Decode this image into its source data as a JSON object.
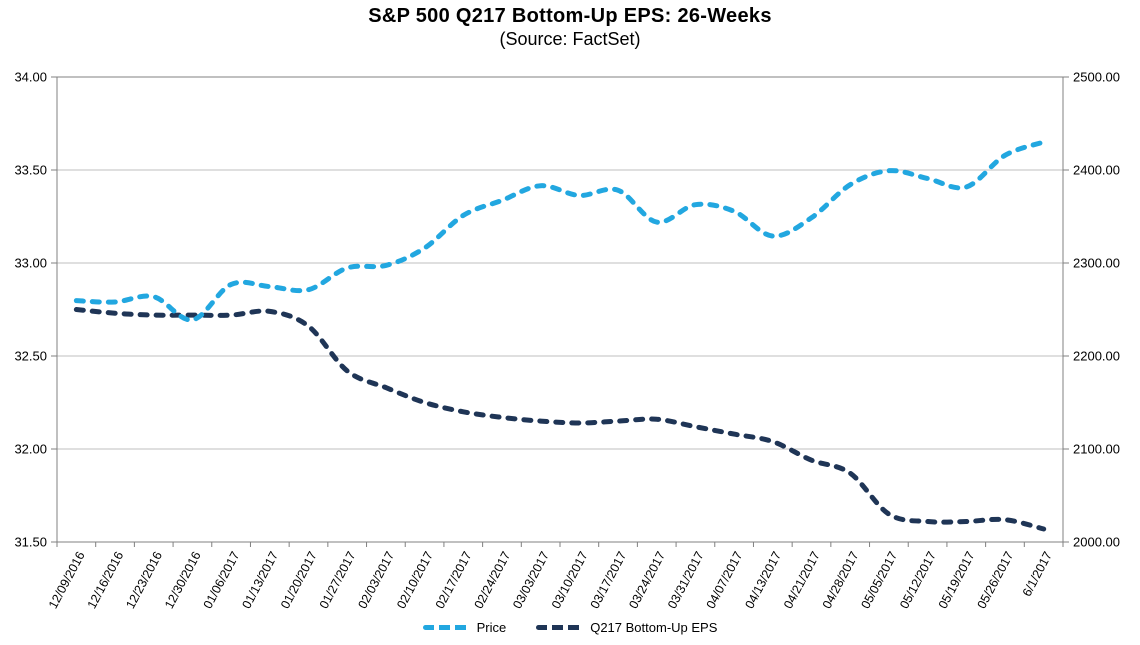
{
  "page": {
    "background": "#FFFFFF"
  },
  "colors": {
    "grid": "#BFBFBF",
    "axis": "#808080",
    "text": "#000000",
    "price_line": "#22A7E0",
    "eps_line": "#1F3556"
  },
  "chart_data": {
    "type": "line",
    "title": "S&P 500 Q217 Bottom-Up EPS: 26-Weeks",
    "subtitle": "(Source: FactSet)",
    "grid": true,
    "legend_position": "bottom",
    "x_labels": [
      "12/09/2016",
      "12/16/2016",
      "12/23/2016",
      "12/30/2016",
      "01/06/2017",
      "01/13/2017",
      "01/20/2017",
      "01/27/2017",
      "02/03/2017",
      "02/10/2017",
      "02/17/2017",
      "02/24/2017",
      "03/03/2017",
      "03/10/2017",
      "03/17/2017",
      "03/24/2017",
      "03/31/2017",
      "04/07/2017",
      "04/13/2017",
      "04/21/2017",
      "04/28/2017",
      "05/05/2017",
      "05/12/2017",
      "05/19/2017",
      "05/26/2017",
      "6/1/2017"
    ],
    "left_axis": {
      "min": 31.5,
      "max": 34.0,
      "step": 0.5,
      "ticks": [
        "34.00",
        "33.50",
        "33.00",
        "32.50",
        "32.00",
        "31.50"
      ]
    },
    "right_axis": {
      "min": 2000,
      "max": 2500,
      "step": 100,
      "ticks": [
        "2500.00",
        "2400.00",
        "2300.00",
        "2200.00",
        "2100.00",
        "2000.00"
      ]
    },
    "series": [
      {
        "name": "Price",
        "axis": "right",
        "color": "#22A7E0",
        "style": "dashed",
        "values": [
          2259.53,
          2258.07,
          2263.79,
          2238.83,
          2276.98,
          2274.64,
          2271.31,
          2294.69,
          2297.42,
          2316.1,
          2351.16,
          2367.34,
          2383.12,
          2372.6,
          2378.25,
          2343.98,
          2362.72,
          2355.54,
          2328.95,
          2348.69,
          2384.2,
          2399.29,
          2390.9,
          2381.73,
          2415.82,
          2430.06
        ]
      },
      {
        "name": "Q217 Bottom-Up EPS",
        "axis": "left",
        "color": "#1F3556",
        "style": "dashed",
        "values": [
          32.75,
          32.73,
          32.72,
          32.72,
          32.72,
          32.74,
          32.66,
          32.42,
          32.33,
          32.25,
          32.2,
          32.17,
          32.15,
          32.14,
          32.15,
          32.16,
          32.12,
          32.08,
          32.04,
          31.94,
          31.87,
          31.65,
          31.61,
          31.61,
          31.62,
          31.57
        ]
      }
    ]
  }
}
